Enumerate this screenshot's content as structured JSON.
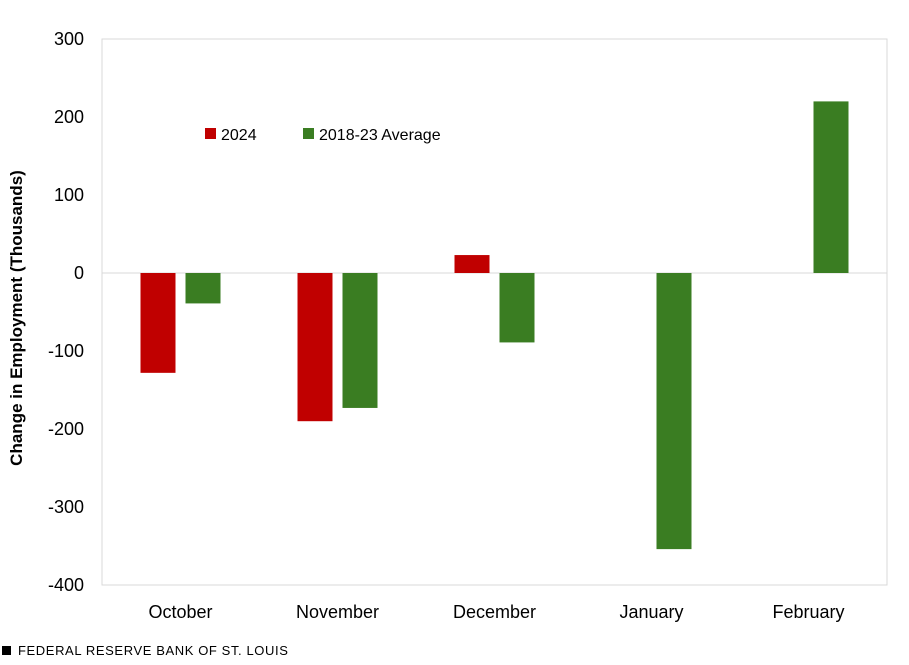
{
  "chart_data": {
    "type": "bar",
    "title": "",
    "xlabel": "",
    "ylabel": "Change in Employment (Thousands)",
    "ylim": [
      -400,
      300
    ],
    "yticks": [
      300,
      200,
      100,
      0,
      -100,
      -200,
      -300,
      -400
    ],
    "categories": [
      "October",
      "November",
      "December",
      "January",
      "February"
    ],
    "series": [
      {
        "name": "2024",
        "color": "#c00000",
        "values": [
          -128,
          -190,
          23,
          null,
          null
        ]
      },
      {
        "name": "2018-23 Average",
        "color": "#3a7d22",
        "values": [
          -39,
          -173,
          -89,
          -354,
          220
        ]
      }
    ],
    "legend_position": "top-left"
  },
  "footer": {
    "source": "FEDERAL RESERVE BANK OF ST. LOUIS"
  }
}
